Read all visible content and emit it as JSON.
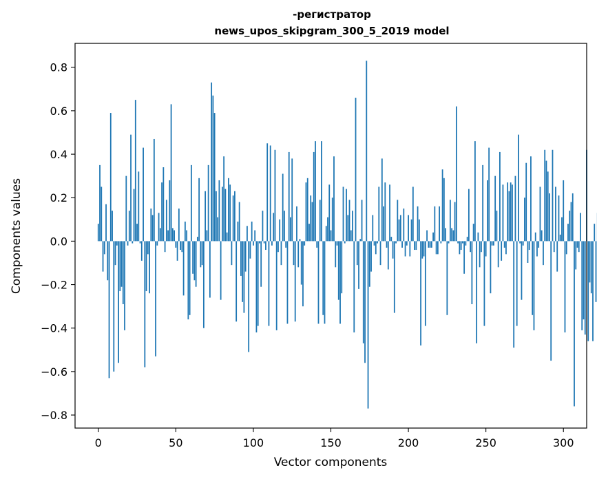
{
  "chart_data": {
    "type": "bar",
    "title_line1": "-регистратор",
    "title_line2": "news_upos_skipgram_300_5_2019 model",
    "xlabel": "Vector components",
    "ylabel": "Components values",
    "xlim": [
      -15,
      315
    ],
    "ylim": [
      -0.86,
      0.91
    ],
    "xticks": [
      0,
      50,
      100,
      150,
      200,
      250,
      300
    ],
    "xtick_labels": [
      "0",
      "50",
      "100",
      "150",
      "200",
      "250",
      "300"
    ],
    "yticks": [
      -0.8,
      -0.6,
      -0.4,
      -0.2,
      0.0,
      0.2,
      0.4,
      0.6,
      0.8
    ],
    "ytick_labels": [
      "−0.8",
      "−0.6",
      "−0.4",
      "−0.2",
      "0.0",
      "0.2",
      "0.4",
      "0.6",
      "0.8"
    ],
    "bar_color": "#1f77b4",
    "values": [
      0.08,
      0.35,
      0.25,
      -0.14,
      -0.06,
      0.17,
      -0.18,
      -0.63,
      0.59,
      0.14,
      -0.6,
      -0.11,
      -0.02,
      -0.56,
      -0.23,
      -0.21,
      -0.29,
      -0.41,
      0.3,
      -0.02,
      0.14,
      0.49,
      -0.01,
      0.24,
      0.65,
      0.08,
      0.32,
      -0.01,
      -0.09,
      0.43,
      -0.58,
      -0.23,
      -0.06,
      -0.24,
      0.15,
      0.12,
      0.47,
      -0.53,
      -0.02,
      0.13,
      0.06,
      0.27,
      0.34,
      -0.05,
      0.19,
      0.05,
      0.28,
      0.63,
      0.06,
      0.05,
      -0.03,
      -0.09,
      0.15,
      -0.04,
      -0.05,
      -0.25,
      0.09,
      0.05,
      -0.36,
      -0.34,
      0.35,
      -0.15,
      -0.18,
      -0.21,
      0.02,
      0.29,
      -0.12,
      -0.11,
      -0.4,
      0.23,
      0.05,
      0.35,
      -0.26,
      0.73,
      0.67,
      0.59,
      0.23,
      0.11,
      0.28,
      -0.27,
      0.25,
      0.39,
      0.24,
      0.04,
      0.29,
      0.26,
      -0.11,
      0.21,
      0.23,
      -0.37,
      0.09,
      0.18,
      -0.16,
      -0.28,
      -0.33,
      -0.14,
      0.07,
      -0.51,
      -0.08,
      0.09,
      -0.02,
      0.05,
      -0.42,
      -0.39,
      -0.01,
      -0.21,
      0.14,
      -0.01,
      -0.04,
      0.45,
      -0.39,
      0.44,
      -0.02,
      0.13,
      0.42,
      -0.41,
      -0.05,
      0.1,
      -0.11,
      0.31,
      0.14,
      -0.03,
      -0.38,
      0.41,
      0.11,
      0.38,
      -0.11,
      -0.37,
      0.16,
      -0.12,
      0.01,
      -0.2,
      -0.3,
      -0.02,
      0.27,
      0.29,
      0.08,
      0.21,
      0.18,
      0.41,
      0.46,
      -0.03,
      -0.38,
      0.19,
      0.46,
      -0.34,
      -0.38,
      0.07,
      0.11,
      0.26,
      0.05,
      0.2,
      0.39,
      -0.12,
      -0.02,
      -0.27,
      -0.38,
      -0.24,
      0.25,
      -0.01,
      0.24,
      0.12,
      0.19,
      0.05,
      0.14,
      -0.42,
      0.66,
      -0.11,
      -0.22,
      0.01,
      0.19,
      -0.47,
      -0.56,
      0.83,
      -0.77,
      -0.21,
      -0.14,
      0.12,
      -0.02,
      -0.06,
      -0.01,
      0.25,
      -0.11,
      0.38,
      0.16,
      0.27,
      -0.03,
      -0.13,
      0.26,
      0.02,
      -0.08,
      -0.33,
      -0.01,
      0.19,
      0.1,
      0.12,
      -0.03,
      0.15,
      -0.07,
      -0.02,
      0.12,
      -0.07,
      0.1,
      0.25,
      -0.04,
      -0.04,
      0.16,
      0.1,
      -0.48,
      -0.08,
      -0.07,
      -0.39,
      0.05,
      -0.03,
      -0.03,
      -0.03,
      0.04,
      0.16,
      -0.06,
      -0.06,
      0.16,
      -0.01,
      0.33,
      0.29,
      0.06,
      -0.34,
      -0.01,
      0.19,
      0.06,
      0.05,
      0.18,
      0.62,
      -0.01,
      -0.06,
      -0.04,
      -0.01,
      -0.15,
      -0.02,
      0.02,
      0.24,
      -0.05,
      -0.29,
      0.08,
      0.46,
      -0.47,
      0.04,
      -0.12,
      -0.05,
      0.35,
      -0.39,
      -0.07,
      0.28,
      0.43,
      -0.24,
      -0.02,
      -0.02,
      0.3,
      0.14,
      -0.12,
      0.41,
      -0.09,
      0.26,
      -0.03,
      -0.06,
      0.27,
      0.23,
      0.27,
      0.26,
      -0.49,
      0.3,
      -0.39,
      0.49,
      -0.01,
      -0.27,
      -0.02,
      0.2,
      0.36,
      -0.1,
      -0.04,
      0.39,
      -0.34,
      -0.41,
      0.04,
      -0.07,
      -0.03,
      0.25,
      0.05,
      -0.11,
      0.42,
      0.37,
      0.32,
      0.22,
      -0.55,
      0.42,
      -0.05,
      0.25,
      -0.14,
      0.21,
      0.03,
      0.11,
      0.28,
      -0.42,
      -0.06,
      0.08,
      0.14,
      0.18,
      0.22,
      -0.76,
      -0.13,
      -0.03,
      -0.05,
      0.13,
      -0.41,
      -0.36,
      -0.43,
      0.42,
      -0.46,
      -0.19,
      -0.24,
      -0.46,
      0.08,
      -0.28,
      0.13,
      -0.42
    ]
  }
}
